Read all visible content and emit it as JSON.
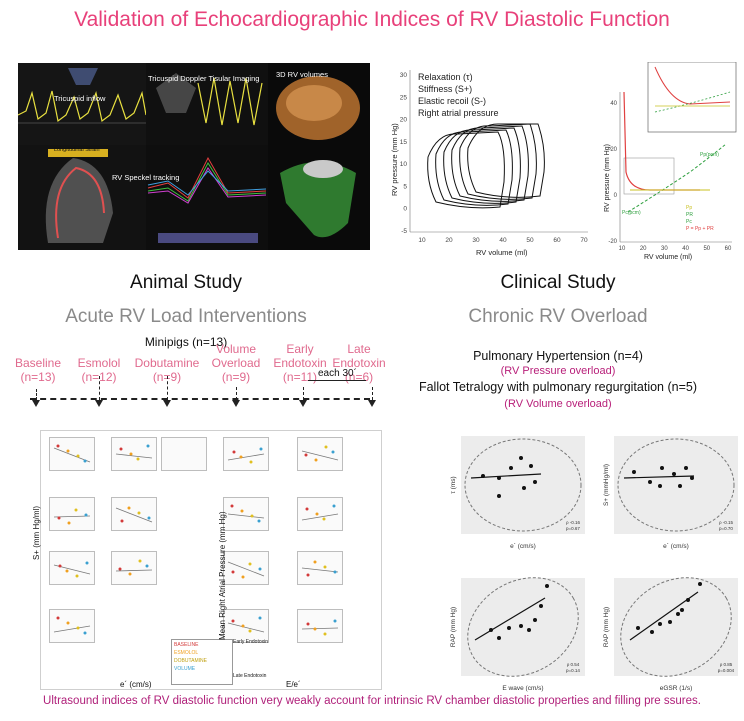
{
  "title": "Validation of Echocardiographic Indices of RV Diastolic Function",
  "echo": {
    "tricuspid_inflow": "Tricuspid inflow",
    "tdi": "Tricuspid Doppler Tisular Imaging",
    "rv3d": "3D RV volumes",
    "speckle": "RV Speckel tracking",
    "strain_box": "Longitudinal Strain"
  },
  "pv_loop": {
    "legend": [
      "Relaxation (τ)",
      "Stiffness (S+)",
      "Elastic recoil (S-)",
      "Right atrial pressure"
    ],
    "ylabel": "RV pressure (mm Hg)",
    "xlabel": "RV volume (ml)",
    "yticks": [
      "30",
      "25",
      "20",
      "15",
      "10",
      "5",
      "0",
      "-5"
    ],
    "xticks": [
      "10",
      "20",
      "30",
      "40",
      "50",
      "60",
      "70"
    ]
  },
  "pv_model": {
    "ylabel": "RV pressure (mm Hg)",
    "xlabel": "RV volume (ml)",
    "yticks": [
      "40",
      "20",
      "0",
      "-20"
    ],
    "xticks": [
      "10",
      "20",
      "30",
      "40",
      "50",
      "60"
    ],
    "legend": [
      "Pp",
      "PR",
      "Pc",
      "P = Pp + PR"
    ],
    "annot_pp": "Pp(pcm)",
    "annot_pr": "Pc(pcm)"
  },
  "animal": {
    "heading": "Animal Study",
    "subheading": "Acute RV Load Interventions",
    "species": "Minipigs (n=13)",
    "steps": [
      {
        "name": "Baseline",
        "n": "(n=13)"
      },
      {
        "name": "Esmolol",
        "n": "(n=12)"
      },
      {
        "name": "Dobutamine",
        "n": "(n=9)"
      },
      {
        "name": "Volume\nOverload",
        "n": "(n=9)"
      },
      {
        "name": "Early\nEndotoxin",
        "n": "(n=11)"
      },
      {
        "name": "Late\nEndotoxin",
        "n": "(n=6)"
      }
    ],
    "each_label": "each 30´",
    "left_ylabel": "S+ (mm Hg/ml)",
    "left_xlabel": "e´ (cm/s)",
    "right_ylabel": "Mean Right Atrial Pressure (mm Hg)",
    "right_xlabel": "E/e´",
    "legend_items": [
      "BASELINE",
      "ESMOLOL",
      "DOBUTAMINE",
      "VOLUME"
    ],
    "legend_items2": [
      "Early Endotoxin",
      "Late Endotoxin"
    ],
    "legend_colors": [
      "#d33a3a",
      "#f0a020",
      "#e0c020",
      "#3aa0d0"
    ]
  },
  "clinical": {
    "heading": "Clinical Study",
    "subheading": "Chronic RV Overload",
    "ph": "Pulmonary Hypertension (n=4)",
    "ph_sub": "(RV Pressure overload)",
    "ft": "Fallot Tetralogy with pulmonary regurgitation (n=5)",
    "ft_sub": "(RV Volume overload)",
    "plots": [
      {
        "ylabel": "τ (ms)",
        "xlabel": "e´ (cm/s)",
        "stat1": "ρ -0.16",
        "stat2": "p=0.67"
      },
      {
        "ylabel": "S+ (mmHg/ml)",
        "xlabel": "e´ (cm/s)",
        "stat1": "ρ -0.15",
        "stat2": "p=0.70"
      },
      {
        "ylabel": "RAP (mm Hg)",
        "xlabel": "E wave (cm/s)",
        "stat1": "ρ 0.54",
        "stat2": "p=0.14"
      },
      {
        "ylabel": "RAP (mm Hg)",
        "xlabel": "eGSR (1/s)",
        "stat1": "ρ 0.85",
        "stat2": "p=0.004"
      }
    ]
  },
  "footer": "Ultrasound indices of RV diastolic function very weakly account for intrinsic RV chamber diastolic properties and filling pre   ssures."
}
